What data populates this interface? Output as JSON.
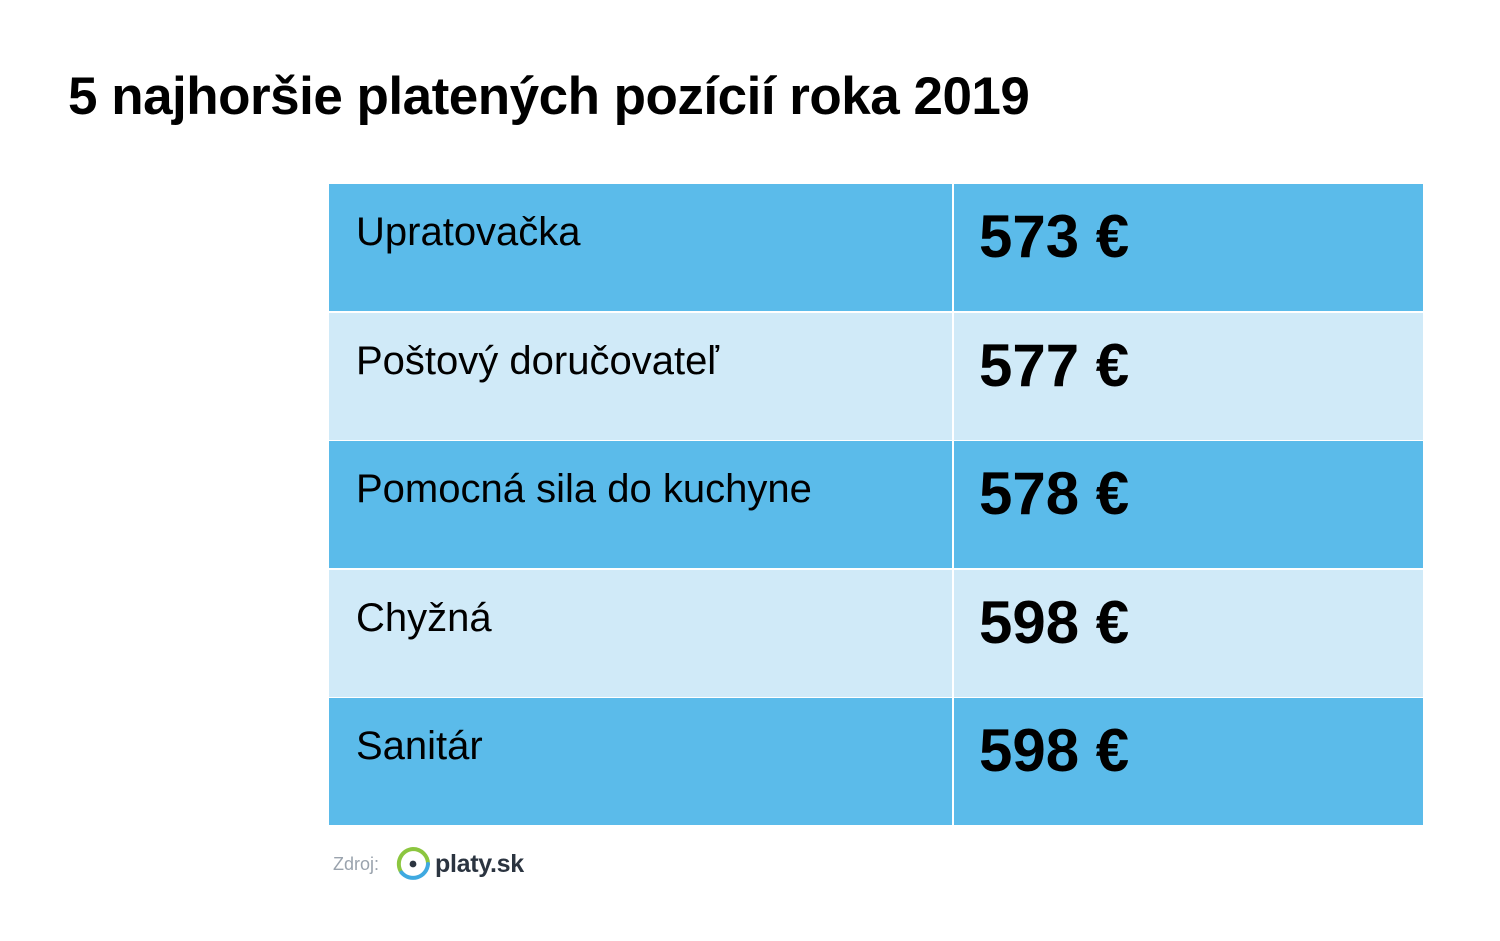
{
  "title": "5 najhoršie platených pozícií roka 2019",
  "colors": {
    "row_dark": "#5bbbea",
    "row_light": "#d0eaf8",
    "logo_blue": "#3fa9e0",
    "logo_green": "#8cc63f"
  },
  "chart_data": {
    "type": "table",
    "title": "5 najhoršie platených pozícií roka 2019",
    "rows": [
      {
        "position": "Upratovačka",
        "salary": 573,
        "salary_label": "573 €"
      },
      {
        "position": "Poštový doručovateľ",
        "salary": 577,
        "salary_label": "577 €"
      },
      {
        "position": "Pomocná sila do kuchyne",
        "salary": 578,
        "salary_label": "578 €"
      },
      {
        "position": "Chyžná",
        "salary": 598,
        "salary_label": "598 €"
      },
      {
        "position": "Sanitár",
        "salary": 598,
        "salary_label": "598 €"
      }
    ],
    "unit": "€"
  },
  "source": {
    "label": "Zdroj:",
    "logo_text": "platy.sk",
    "logo_icon": "platy-sk-logo-icon"
  }
}
